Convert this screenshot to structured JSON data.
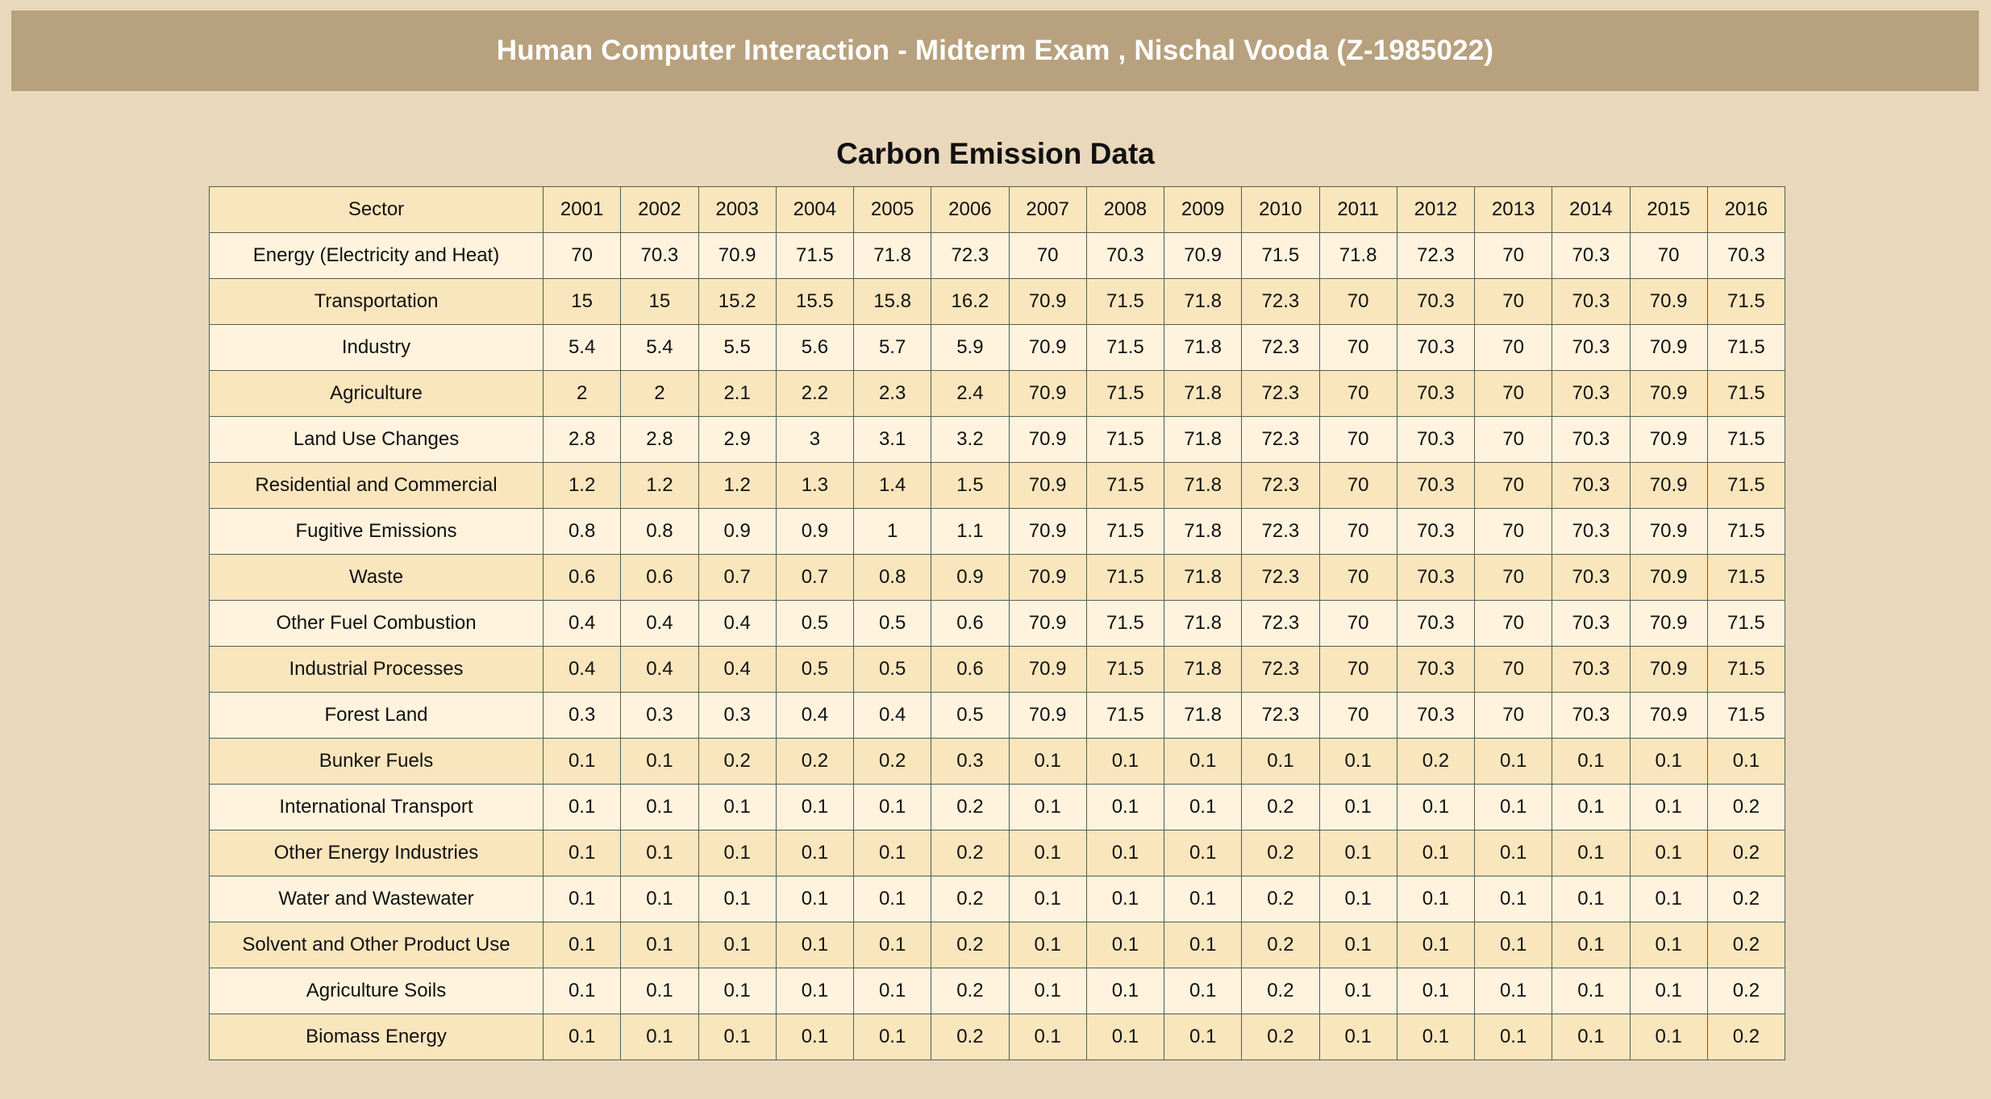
{
  "header": {
    "title": "Human Computer Interaction - Midterm Exam , Nischal Vooda (Z-1985022)"
  },
  "main": {
    "table_title": "Carbon Emission Data",
    "table": {
      "columns": [
        "Sector",
        "2001",
        "2002",
        "2003",
        "2004",
        "2005",
        "2006",
        "2007",
        "2008",
        "2009",
        "2010",
        "2011",
        "2012",
        "2013",
        "2014",
        "2015",
        "2016"
      ],
      "rows": [
        [
          "Energy (Electricity and Heat)",
          "70",
          "70.3",
          "70.9",
          "71.5",
          "71.8",
          "72.3",
          "70",
          "70.3",
          "70.9",
          "71.5",
          "71.8",
          "72.3",
          "70",
          "70.3",
          "70",
          "70.3"
        ],
        [
          "Transportation",
          "15",
          "15",
          "15.2",
          "15.5",
          "15.8",
          "16.2",
          "70.9",
          "71.5",
          "71.8",
          "72.3",
          "70",
          "70.3",
          "70",
          "70.3",
          "70.9",
          "71.5"
        ],
        [
          "Industry",
          "5.4",
          "5.4",
          "5.5",
          "5.6",
          "5.7",
          "5.9",
          "70.9",
          "71.5",
          "71.8",
          "72.3",
          "70",
          "70.3",
          "70",
          "70.3",
          "70.9",
          "71.5"
        ],
        [
          "Agriculture",
          "2",
          "2",
          "2.1",
          "2.2",
          "2.3",
          "2.4",
          "70.9",
          "71.5",
          "71.8",
          "72.3",
          "70",
          "70.3",
          "70",
          "70.3",
          "70.9",
          "71.5"
        ],
        [
          "Land Use Changes",
          "2.8",
          "2.8",
          "2.9",
          "3",
          "3.1",
          "3.2",
          "70.9",
          "71.5",
          "71.8",
          "72.3",
          "70",
          "70.3",
          "70",
          "70.3",
          "70.9",
          "71.5"
        ],
        [
          "Residential and Commercial",
          "1.2",
          "1.2",
          "1.2",
          "1.3",
          "1.4",
          "1.5",
          "70.9",
          "71.5",
          "71.8",
          "72.3",
          "70",
          "70.3",
          "70",
          "70.3",
          "70.9",
          "71.5"
        ],
        [
          "Fugitive Emissions",
          "0.8",
          "0.8",
          "0.9",
          "0.9",
          "1",
          "1.1",
          "70.9",
          "71.5",
          "71.8",
          "72.3",
          "70",
          "70.3",
          "70",
          "70.3",
          "70.9",
          "71.5"
        ],
        [
          "Waste",
          "0.6",
          "0.6",
          "0.7",
          "0.7",
          "0.8",
          "0.9",
          "70.9",
          "71.5",
          "71.8",
          "72.3",
          "70",
          "70.3",
          "70",
          "70.3",
          "70.9",
          "71.5"
        ],
        [
          "Other Fuel Combustion",
          "0.4",
          "0.4",
          "0.4",
          "0.5",
          "0.5",
          "0.6",
          "70.9",
          "71.5",
          "71.8",
          "72.3",
          "70",
          "70.3",
          "70",
          "70.3",
          "70.9",
          "71.5"
        ],
        [
          "Industrial Processes",
          "0.4",
          "0.4",
          "0.4",
          "0.5",
          "0.5",
          "0.6",
          "70.9",
          "71.5",
          "71.8",
          "72.3",
          "70",
          "70.3",
          "70",
          "70.3",
          "70.9",
          "71.5"
        ],
        [
          "Forest Land",
          "0.3",
          "0.3",
          "0.3",
          "0.4",
          "0.4",
          "0.5",
          "70.9",
          "71.5",
          "71.8",
          "72.3",
          "70",
          "70.3",
          "70",
          "70.3",
          "70.9",
          "71.5"
        ],
        [
          "Bunker Fuels",
          "0.1",
          "0.1",
          "0.2",
          "0.2",
          "0.2",
          "0.3",
          "0.1",
          "0.1",
          "0.1",
          "0.1",
          "0.1",
          "0.2",
          "0.1",
          "0.1",
          "0.1",
          "0.1"
        ],
        [
          "International Transport",
          "0.1",
          "0.1",
          "0.1",
          "0.1",
          "0.1",
          "0.2",
          "0.1",
          "0.1",
          "0.1",
          "0.2",
          "0.1",
          "0.1",
          "0.1",
          "0.1",
          "0.1",
          "0.2"
        ],
        [
          "Other Energy Industries",
          "0.1",
          "0.1",
          "0.1",
          "0.1",
          "0.1",
          "0.2",
          "0.1",
          "0.1",
          "0.1",
          "0.2",
          "0.1",
          "0.1",
          "0.1",
          "0.1",
          "0.1",
          "0.2"
        ],
        [
          "Water and Wastewater",
          "0.1",
          "0.1",
          "0.1",
          "0.1",
          "0.1",
          "0.2",
          "0.1",
          "0.1",
          "0.1",
          "0.2",
          "0.1",
          "0.1",
          "0.1",
          "0.1",
          "0.1",
          "0.2"
        ],
        [
          "Solvent and Other Product Use",
          "0.1",
          "0.1",
          "0.1",
          "0.1",
          "0.1",
          "0.2",
          "0.1",
          "0.1",
          "0.1",
          "0.2",
          "0.1",
          "0.1",
          "0.1",
          "0.1",
          "0.1",
          "0.2"
        ],
        [
          "Agriculture Soils",
          "0.1",
          "0.1",
          "0.1",
          "0.1",
          "0.1",
          "0.2",
          "0.1",
          "0.1",
          "0.1",
          "0.2",
          "0.1",
          "0.1",
          "0.1",
          "0.1",
          "0.1",
          "0.2"
        ],
        [
          "Biomass Energy",
          "0.1",
          "0.1",
          "0.1",
          "0.1",
          "0.1",
          "0.2",
          "0.1",
          "0.1",
          "0.1",
          "0.2",
          "0.1",
          "0.1",
          "0.1",
          "0.1",
          "0.1",
          "0.2"
        ]
      ]
    }
  },
  "colors": {
    "page_background": "#e9d8bc",
    "banner_background": "#b8a17e",
    "banner_text": "#ffffff",
    "row_light": "#fff3de",
    "row_tan": "#fae6bd",
    "cell_border": "#4f5f52"
  }
}
